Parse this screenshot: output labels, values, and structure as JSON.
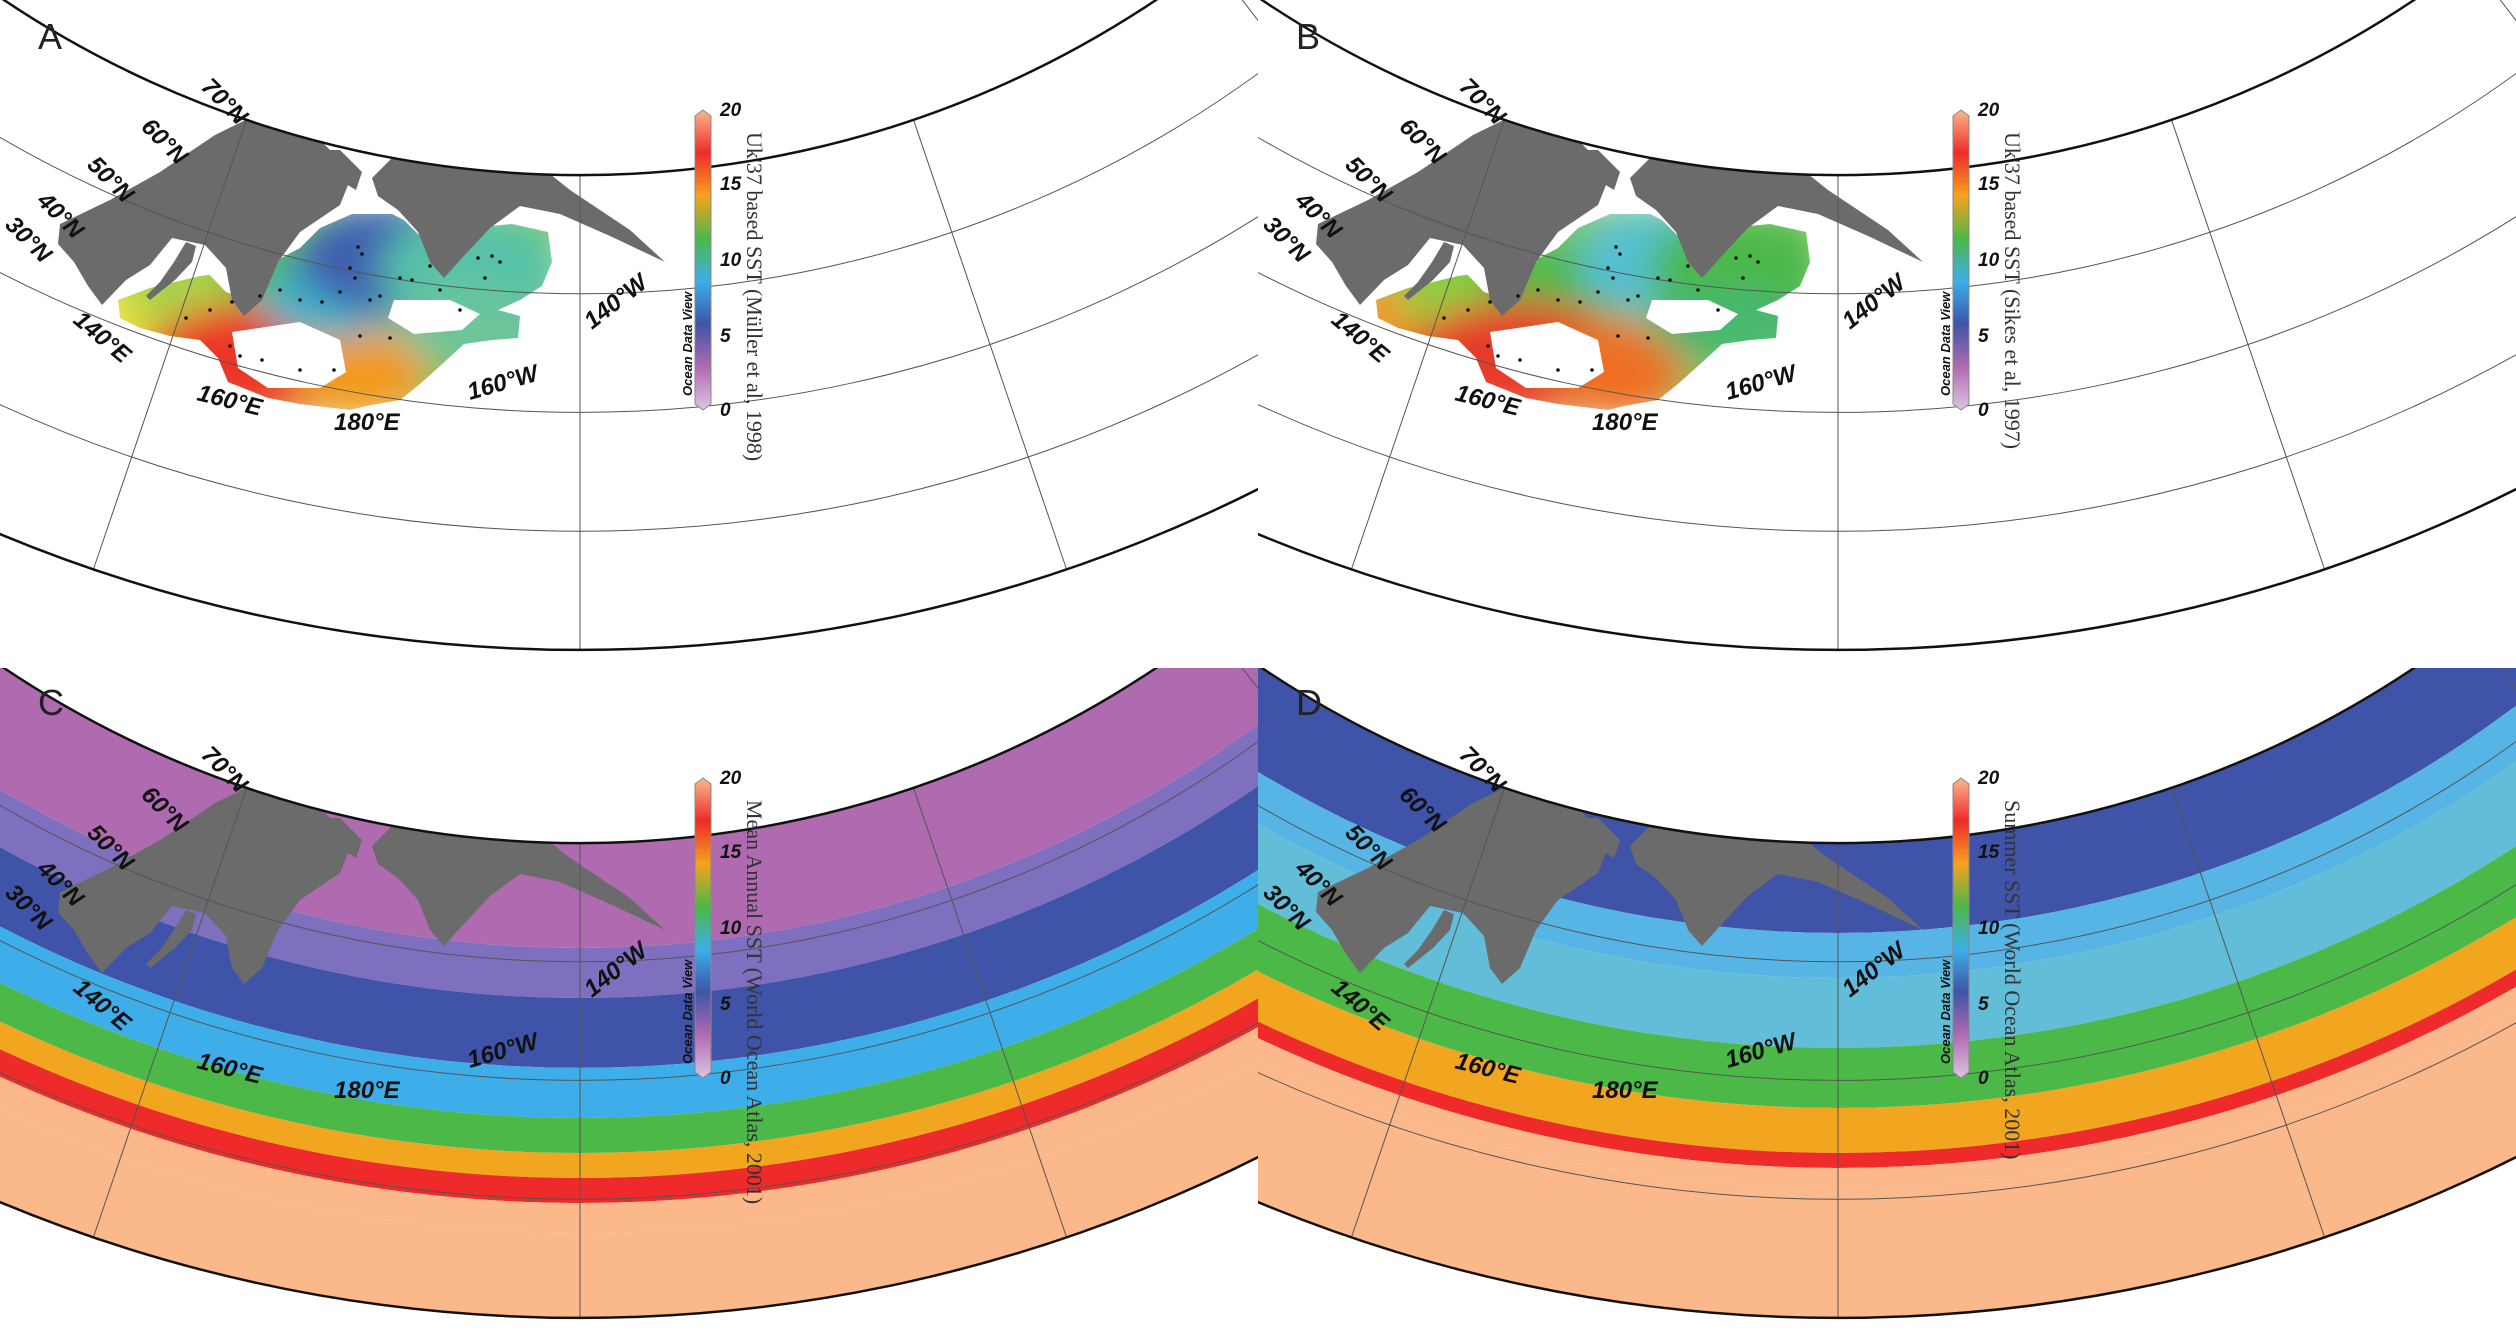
{
  "colorbar": {
    "ticks": [
      "20",
      "15",
      "10",
      "5",
      "0"
    ],
    "stops": [
      "#fbb88a",
      "#ee2a2a",
      "#f6a21f",
      "#4cb848",
      "#3daee9",
      "#3f54a8",
      "#b06bb0",
      "#dcc4e4"
    ],
    "watermark": "Ocean Data View"
  },
  "grid_labels": {
    "lat": [
      "70°N",
      "60°N",
      "50°N",
      "40°N",
      "30°N"
    ],
    "lon": [
      "140°E",
      "160°E",
      "180°E",
      "160°W",
      "140°W"
    ]
  },
  "colors": {
    "land": "#6b6b6b",
    "outline": "#111111",
    "grid": "#555555"
  },
  "panels": [
    {
      "letter": "A",
      "cb_title": "Uk'37 based SST (Müller et al, 1998)",
      "mode": "proxy",
      "scheme": "muller"
    },
    {
      "letter": "B",
      "cb_title": "Uk'37 based SST (Sikes et al, 1997)",
      "mode": "proxy",
      "scheme": "sikes"
    },
    {
      "letter": "C",
      "cb_title": "Mean Annual SST (World Ocean Atlas, 2001)",
      "mode": "full",
      "scheme": "annual"
    },
    {
      "letter": "D",
      "cb_title": "Summer SST (World Ocean Atlas, 2001)",
      "mode": "full",
      "scheme": "summer"
    }
  ]
}
